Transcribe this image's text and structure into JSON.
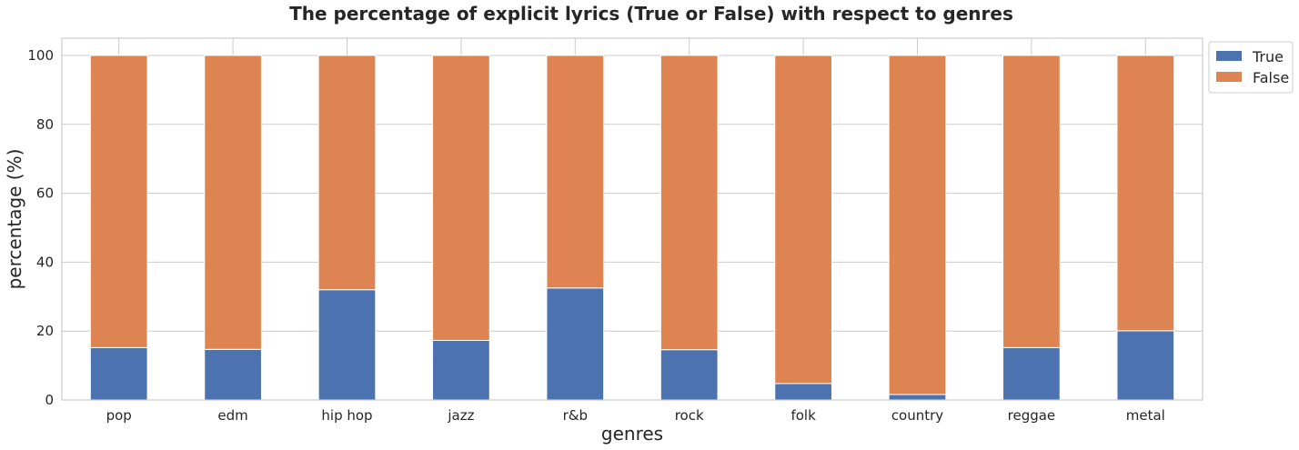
{
  "chart_data": {
    "type": "bar",
    "stacked": true,
    "title": "The percentage of explicit lyrics (True or False) with respect to genres",
    "xlabel": "genres",
    "ylabel": "percentage (%)",
    "ylim": [
      0,
      105
    ],
    "yticks": [
      0,
      20,
      40,
      60,
      80,
      100
    ],
    "grid": true,
    "legend_position": "outside-top-right",
    "categories": [
      "pop",
      "edm",
      "hip hop",
      "jazz",
      "r&b",
      "rock",
      "folk",
      "country",
      "reggae",
      "metal"
    ],
    "series": [
      {
        "name": "True",
        "color": "#4c72b0",
        "values": [
          15.2,
          14.7,
          32.0,
          17.3,
          32.5,
          14.6,
          4.8,
          1.6,
          15.2,
          20.1
        ]
      },
      {
        "name": "False",
        "color": "#dd8452",
        "values": [
          84.8,
          85.3,
          68.0,
          82.7,
          67.5,
          85.4,
          95.2,
          98.4,
          84.8,
          79.9
        ]
      }
    ]
  }
}
